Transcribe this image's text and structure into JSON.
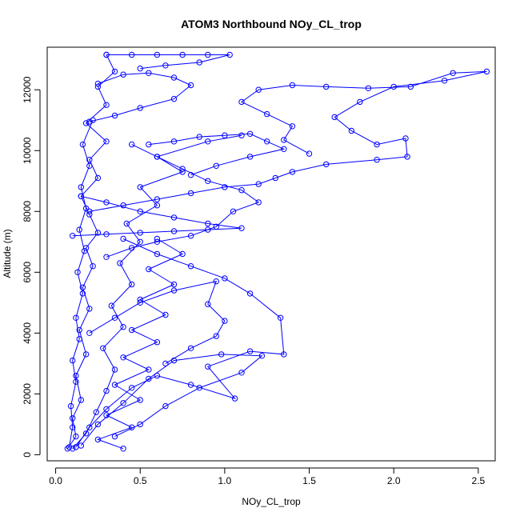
{
  "chart_data": {
    "type": "scatter",
    "title": "ATOM3 Northbound NOy_CL_trop",
    "xlabel": "NOy_CL_trop",
    "ylabel": "Altitude (m)",
    "xlim": [
      -0.05,
      2.6
    ],
    "ylim": [
      -200,
      13400
    ],
    "x_ticks": [
      0.0,
      0.5,
      1.0,
      1.5,
      2.0,
      2.5
    ],
    "x_tick_labels": [
      "0.0",
      "0.5",
      "1.0",
      "1.5",
      "2.0",
      "2.5"
    ],
    "y_ticks": [
      0,
      2000,
      4000,
      6000,
      8000,
      10000,
      12000
    ],
    "y_tick_labels": [
      "0",
      "2000",
      "4000",
      "6000",
      "8000",
      "10000",
      "12000"
    ],
    "grid": false,
    "legend": "none",
    "marker": "open-circle",
    "connected": true,
    "color": "#0000ff",
    "series": [
      {
        "points": [
          [
            0.07,
            200
          ],
          [
            0.12,
            600
          ],
          [
            0.1,
            1200
          ],
          [
            0.15,
            1800
          ],
          [
            0.12,
            2600
          ],
          [
            0.18,
            3300
          ],
          [
            0.14,
            4100
          ],
          [
            0.2,
            4800
          ],
          [
            0.16,
            5500
          ],
          [
            0.22,
            6200
          ],
          [
            0.18,
            6800
          ],
          [
            0.25,
            7300
          ],
          [
            0.2,
            7900
          ],
          [
            0.15,
            8500
          ],
          [
            0.25,
            9100
          ],
          [
            0.2,
            9700
          ],
          [
            0.3,
            10300
          ],
          [
            0.18,
            10900
          ],
          [
            0.3,
            11500
          ],
          [
            0.25,
            12100
          ],
          [
            0.35,
            12600
          ],
          [
            0.3,
            13150
          ]
        ]
      },
      {
        "points": [
          [
            0.1,
            200
          ],
          [
            0.18,
            700
          ],
          [
            0.24,
            1400
          ],
          [
            0.3,
            2100
          ],
          [
            0.35,
            2800
          ],
          [
            0.28,
            3500
          ],
          [
            0.4,
            4200
          ],
          [
            0.33,
            4900
          ],
          [
            0.45,
            5600
          ],
          [
            0.38,
            6300
          ],
          [
            0.5,
            7000
          ],
          [
            0.42,
            7600
          ],
          [
            0.6,
            8200
          ],
          [
            0.5,
            8800
          ],
          [
            0.75,
            9300
          ],
          [
            0.6,
            9800
          ],
          [
            0.9,
            10300
          ],
          [
            1.1,
            10500
          ]
        ]
      },
      {
        "points": [
          [
            0.12,
            250
          ],
          [
            0.2,
            900
          ],
          [
            0.3,
            1500
          ],
          [
            0.45,
            2200
          ],
          [
            0.6,
            2600
          ],
          [
            0.8,
            2300
          ],
          [
            1.06,
            1850
          ],
          [
            0.9,
            2900
          ],
          [
            1.15,
            3400
          ],
          [
            1.35,
            3300
          ],
          [
            1.33,
            4500
          ],
          [
            1.15,
            5300
          ],
          [
            1.0,
            5800
          ],
          [
            0.8,
            6200
          ],
          [
            0.6,
            6600
          ],
          [
            0.4,
            7100
          ]
        ]
      },
      {
        "points": [
          [
            0.15,
            300
          ],
          [
            0.25,
            1000
          ],
          [
            0.4,
            1700
          ],
          [
            0.55,
            2500
          ],
          [
            0.7,
            3100
          ],
          [
            0.98,
            3300
          ],
          [
            1.22,
            3250
          ],
          [
            1.1,
            2700
          ],
          [
            0.85,
            2200
          ],
          [
            0.65,
            1600
          ],
          [
            0.5,
            1000
          ],
          [
            0.35,
            600
          ]
        ]
      },
      {
        "points": [
          [
            0.2,
            8000
          ],
          [
            0.4,
            8200
          ],
          [
            0.6,
            8400
          ],
          [
            0.8,
            8600
          ],
          [
            1.0,
            8800
          ],
          [
            1.2,
            8900
          ],
          [
            1.3,
            9100
          ],
          [
            1.4,
            9300
          ],
          [
            1.6,
            9550
          ],
          [
            1.9,
            9700
          ],
          [
            2.08,
            9800
          ],
          [
            2.07,
            10400
          ],
          [
            1.9,
            10200
          ],
          [
            1.75,
            10650
          ],
          [
            1.65,
            11100
          ],
          [
            1.8,
            11600
          ],
          [
            2.0,
            12100
          ],
          [
            2.3,
            12300
          ],
          [
            2.55,
            12600
          ],
          [
            2.35,
            12550
          ],
          [
            2.1,
            12100
          ],
          [
            1.85,
            12050
          ],
          [
            1.6,
            12100
          ],
          [
            1.4,
            12150
          ],
          [
            1.2,
            12000
          ],
          [
            1.1,
            11600
          ],
          [
            1.25,
            11200
          ],
          [
            1.4,
            10800
          ],
          [
            1.35,
            10350
          ],
          [
            1.5,
            9900
          ]
        ]
      },
      {
        "points": [
          [
            0.3,
            6500
          ],
          [
            0.45,
            6800
          ],
          [
            0.6,
            7000
          ],
          [
            0.8,
            7200
          ],
          [
            0.95,
            7500
          ],
          [
            1.05,
            8000
          ],
          [
            1.2,
            8300
          ],
          [
            1.1,
            8700
          ],
          [
            0.9,
            9000
          ],
          [
            0.75,
            9400
          ],
          [
            0.6,
            9800
          ],
          [
            0.45,
            10200
          ]
        ]
      },
      {
        "points": [
          [
            0.55,
            10200
          ],
          [
            0.7,
            10300
          ],
          [
            0.85,
            10450
          ],
          [
            1.0,
            10500
          ],
          [
            1.15,
            10550
          ],
          [
            1.25,
            10300
          ],
          [
            1.35,
            10050
          ],
          [
            1.15,
            9800
          ],
          [
            0.95,
            9500
          ],
          [
            0.8,
            9200
          ]
        ]
      },
      {
        "points": [
          [
            0.2,
            4000
          ],
          [
            0.35,
            4500
          ],
          [
            0.5,
            5000
          ],
          [
            0.7,
            5400
          ],
          [
            0.95,
            5700
          ],
          [
            0.9,
            4950
          ],
          [
            1.0,
            4400
          ],
          [
            0.95,
            3900
          ],
          [
            0.8,
            3500
          ],
          [
            0.65,
            3000
          ]
        ]
      },
      {
        "points": [
          [
            0.25,
            12200
          ],
          [
            0.4,
            12500
          ],
          [
            0.55,
            12550
          ],
          [
            0.7,
            12400
          ],
          [
            0.8,
            12150
          ],
          [
            0.7,
            11700
          ],
          [
            0.5,
            11400
          ],
          [
            0.35,
            11150
          ],
          [
            0.2,
            10950
          ]
        ]
      },
      {
        "points": [
          [
            0.3,
            13150
          ],
          [
            0.45,
            13150
          ],
          [
            0.6,
            13150
          ],
          [
            0.75,
            13150
          ],
          [
            0.9,
            13150
          ],
          [
            1.03,
            13150
          ],
          [
            0.85,
            12900
          ],
          [
            0.65,
            12800
          ],
          [
            0.5,
            12700
          ]
        ]
      },
      {
        "points": [
          [
            0.08,
            250
          ],
          [
            0.1,
            900
          ],
          [
            0.09,
            1600
          ],
          [
            0.12,
            2400
          ],
          [
            0.1,
            3100
          ],
          [
            0.14,
            3800
          ],
          [
            0.12,
            4500
          ],
          [
            0.16,
            5300
          ],
          [
            0.13,
            6000
          ],
          [
            0.17,
            6700
          ],
          [
            0.14,
            7400
          ],
          [
            0.18,
            8100
          ],
          [
            0.15,
            8800
          ],
          [
            0.2,
            9500
          ],
          [
            0.16,
            10200
          ],
          [
            0.22,
            11000
          ]
        ]
      },
      {
        "points": [
          [
            0.4,
            200
          ],
          [
            0.25,
            500
          ],
          [
            0.45,
            900
          ],
          [
            0.3,
            1300
          ],
          [
            0.5,
            1800
          ],
          [
            0.35,
            2300
          ],
          [
            0.55,
            2800
          ],
          [
            0.4,
            3200
          ],
          [
            0.6,
            3700
          ],
          [
            0.45,
            4100
          ],
          [
            0.65,
            4600
          ],
          [
            0.5,
            5100
          ],
          [
            0.7,
            5600
          ],
          [
            0.55,
            6100
          ],
          [
            0.75,
            6600
          ],
          [
            0.6,
            7100
          ]
        ]
      },
      {
        "points": [
          [
            0.1,
            7200
          ],
          [
            0.3,
            7250
          ],
          [
            0.5,
            7300
          ],
          [
            0.7,
            7350
          ],
          [
            0.9,
            7400
          ],
          [
            1.1,
            7450
          ],
          [
            0.9,
            7600
          ],
          [
            0.7,
            7800
          ],
          [
            0.5,
            8000
          ],
          [
            0.3,
            8300
          ],
          [
            0.15,
            8500
          ]
        ]
      }
    ]
  }
}
